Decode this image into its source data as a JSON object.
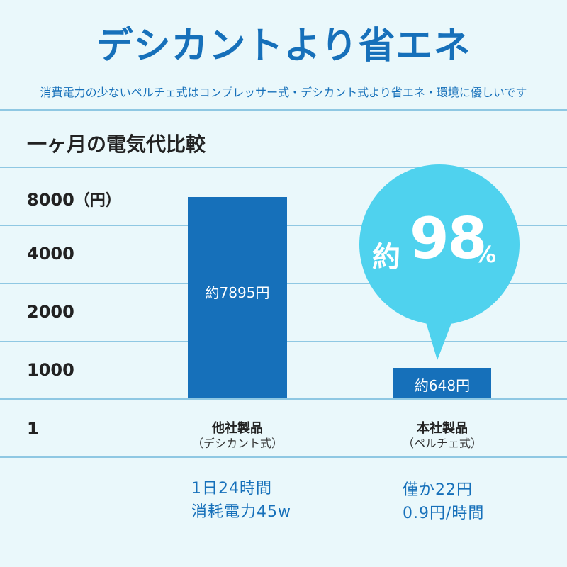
{
  "header": {
    "title": "デシカントより省エネ",
    "subtitle": "消費電力の少ないペルチェ式はコンプレッサー式・デシカント式より省エネ・環境に優しいです"
  },
  "colors": {
    "accent": "#1670ba",
    "bubble": "#4fd2ee",
    "background": "#eaf8fb"
  },
  "chart_data": {
    "type": "bar",
    "title": "一ヶ月の電気代比較",
    "y_unit_label": "（円）",
    "yticks": [
      "8000",
      "4000",
      "2000",
      "1000",
      "1"
    ],
    "categories": [
      "他社製品",
      "本社製品"
    ],
    "category_sublabels": [
      "（デシカント式）",
      "（ペルチェ式）"
    ],
    "values": [
      7895,
      648
    ],
    "data_labels": [
      "約7895円",
      "約648円"
    ],
    "annotation": {
      "prefix": "約",
      "value": "98",
      "suffix": "%"
    },
    "notes": [
      [
        "1日24時間",
        "消耗電力45w"
      ],
      [
        "僅か22円",
        "0.9円/時間"
      ]
    ]
  }
}
